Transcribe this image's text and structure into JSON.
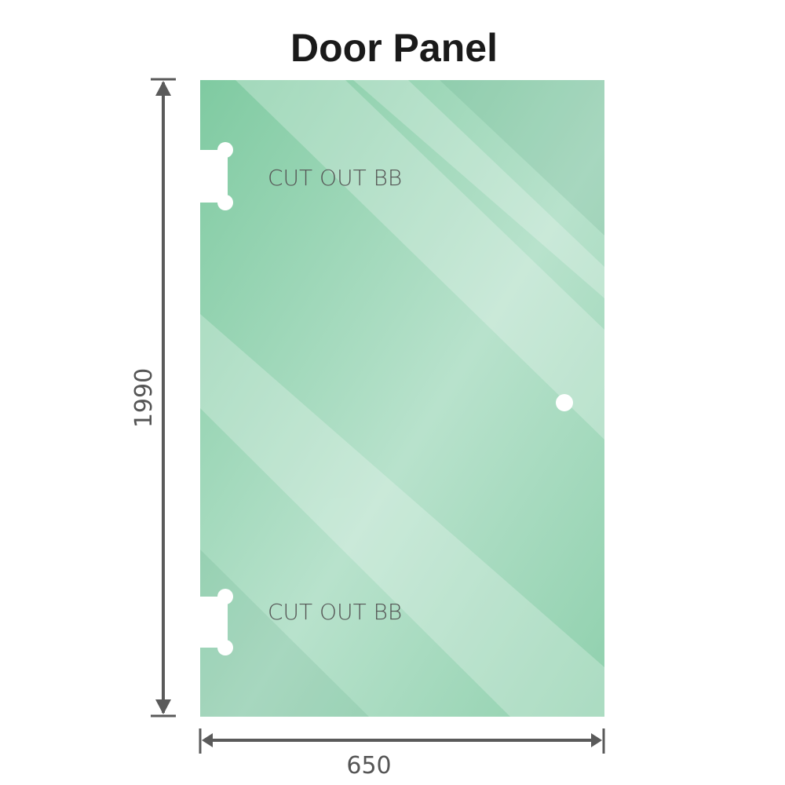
{
  "title": "Door Panel",
  "panel": {
    "color": "#7fcba0",
    "cutouts": [
      {
        "label": "CUT OUT BB"
      },
      {
        "label": "CUT OUT BB"
      }
    ]
  },
  "dimensions": {
    "height": "1990",
    "width": "650",
    "color": "#5a5a5a"
  }
}
